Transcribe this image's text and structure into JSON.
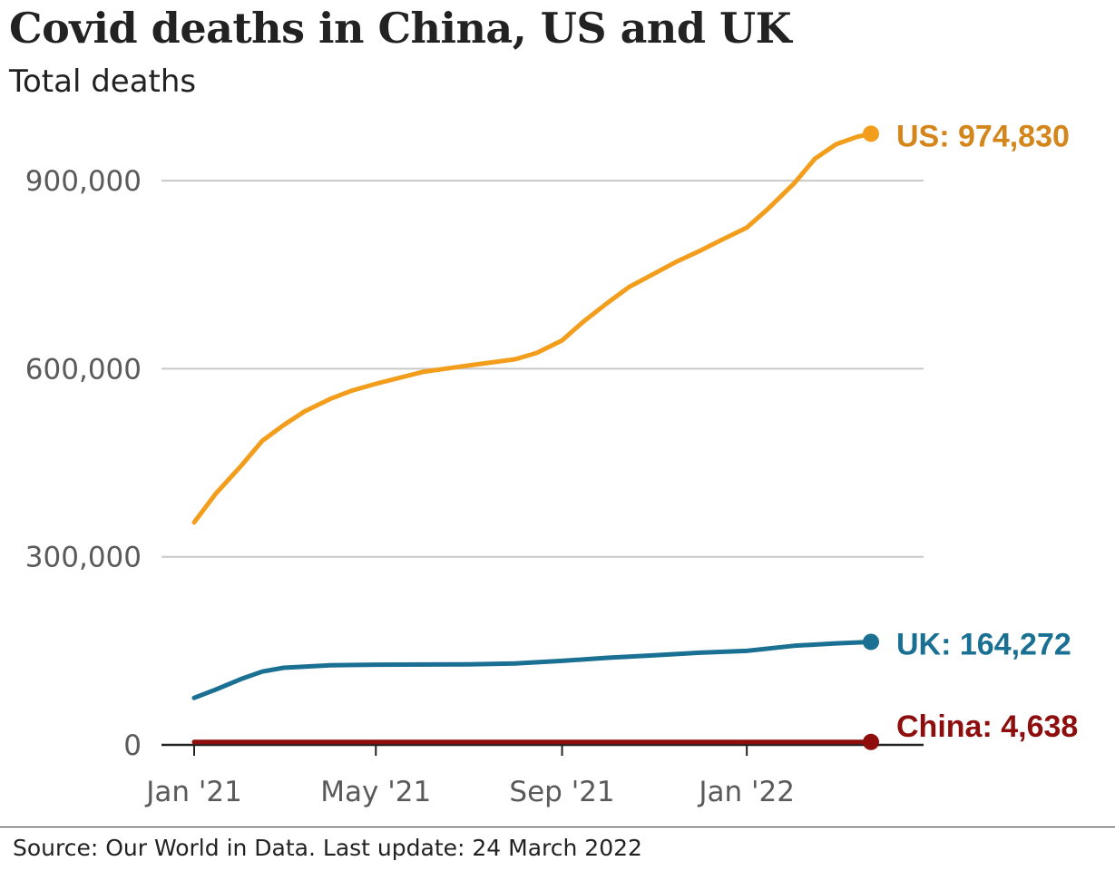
{
  "header": {
    "title": "Covid deaths in China, US and UK",
    "subtitle": "Total deaths"
  },
  "footer": {
    "source": "Source: Our World in Data. Last update: 24 March 2022"
  },
  "chart_data": {
    "type": "line",
    "title": "Covid deaths in China, US and UK",
    "subtitle": "Total deaths",
    "xlabel": "",
    "ylabel": "",
    "x_range": [
      "2021-01-01",
      "2022-03-24"
    ],
    "ylim": [
      0,
      1000000
    ],
    "y_ticks": [
      0,
      300000,
      600000,
      900000
    ],
    "y_tick_labels": [
      "0",
      "300,000",
      "600,000",
      "900,000"
    ],
    "x_ticks": [
      "2021-01-01",
      "2021-05-01",
      "2021-09-01",
      "2022-01-01"
    ],
    "x_tick_labels": [
      "Jan '21",
      "May '21",
      "Sep '21",
      "Jan '22"
    ],
    "grid": true,
    "legend": "direct labels at line ends",
    "series": [
      {
        "name": "US",
        "label": "US: 974,830",
        "color": "#f29e1c",
        "label_color": "#d4861a",
        "points": [
          [
            "2021-01-01",
            355000
          ],
          [
            "2021-01-15",
            400000
          ],
          [
            "2021-02-01",
            445000
          ],
          [
            "2021-02-15",
            485000
          ],
          [
            "2021-03-01",
            510000
          ],
          [
            "2021-03-15",
            532000
          ],
          [
            "2021-04-01",
            552000
          ],
          [
            "2021-04-15",
            565000
          ],
          [
            "2021-05-01",
            576000
          ],
          [
            "2021-06-01",
            595000
          ],
          [
            "2021-07-01",
            605000
          ],
          [
            "2021-08-01",
            615000
          ],
          [
            "2021-08-15",
            625000
          ],
          [
            "2021-09-01",
            645000
          ],
          [
            "2021-09-15",
            675000
          ],
          [
            "2021-10-01",
            705000
          ],
          [
            "2021-10-15",
            730000
          ],
          [
            "2021-11-01",
            752000
          ],
          [
            "2021-11-15",
            770000
          ],
          [
            "2021-12-01",
            788000
          ],
          [
            "2021-12-15",
            805000
          ],
          [
            "2022-01-01",
            825000
          ],
          [
            "2022-01-15",
            855000
          ],
          [
            "2022-02-01",
            895000
          ],
          [
            "2022-02-15",
            935000
          ],
          [
            "2022-03-01",
            958000
          ],
          [
            "2022-03-15",
            970000
          ],
          [
            "2022-03-24",
            974830
          ]
        ]
      },
      {
        "name": "UK",
        "label": "UK: 164,272",
        "color": "#1a7092",
        "label_color": "#1a7092",
        "points": [
          [
            "2021-01-01",
            75000
          ],
          [
            "2021-01-15",
            88000
          ],
          [
            "2021-02-01",
            105000
          ],
          [
            "2021-02-15",
            117000
          ],
          [
            "2021-03-01",
            123000
          ],
          [
            "2021-04-01",
            127000
          ],
          [
            "2021-05-01",
            128000
          ],
          [
            "2021-07-01",
            128500
          ],
          [
            "2021-08-01",
            130000
          ],
          [
            "2021-09-01",
            134000
          ],
          [
            "2021-10-01",
            139000
          ],
          [
            "2021-11-01",
            143000
          ],
          [
            "2021-12-01",
            147000
          ],
          [
            "2022-01-01",
            150000
          ],
          [
            "2022-02-01",
            158000
          ],
          [
            "2022-03-01",
            162000
          ],
          [
            "2022-03-24",
            164272
          ]
        ]
      },
      {
        "name": "China",
        "label": "China: 4,638",
        "color": "#8e0e0e",
        "label_color": "#8e0e0e",
        "points": [
          [
            "2021-01-01",
            4635
          ],
          [
            "2022-03-24",
            4638
          ]
        ]
      }
    ]
  }
}
